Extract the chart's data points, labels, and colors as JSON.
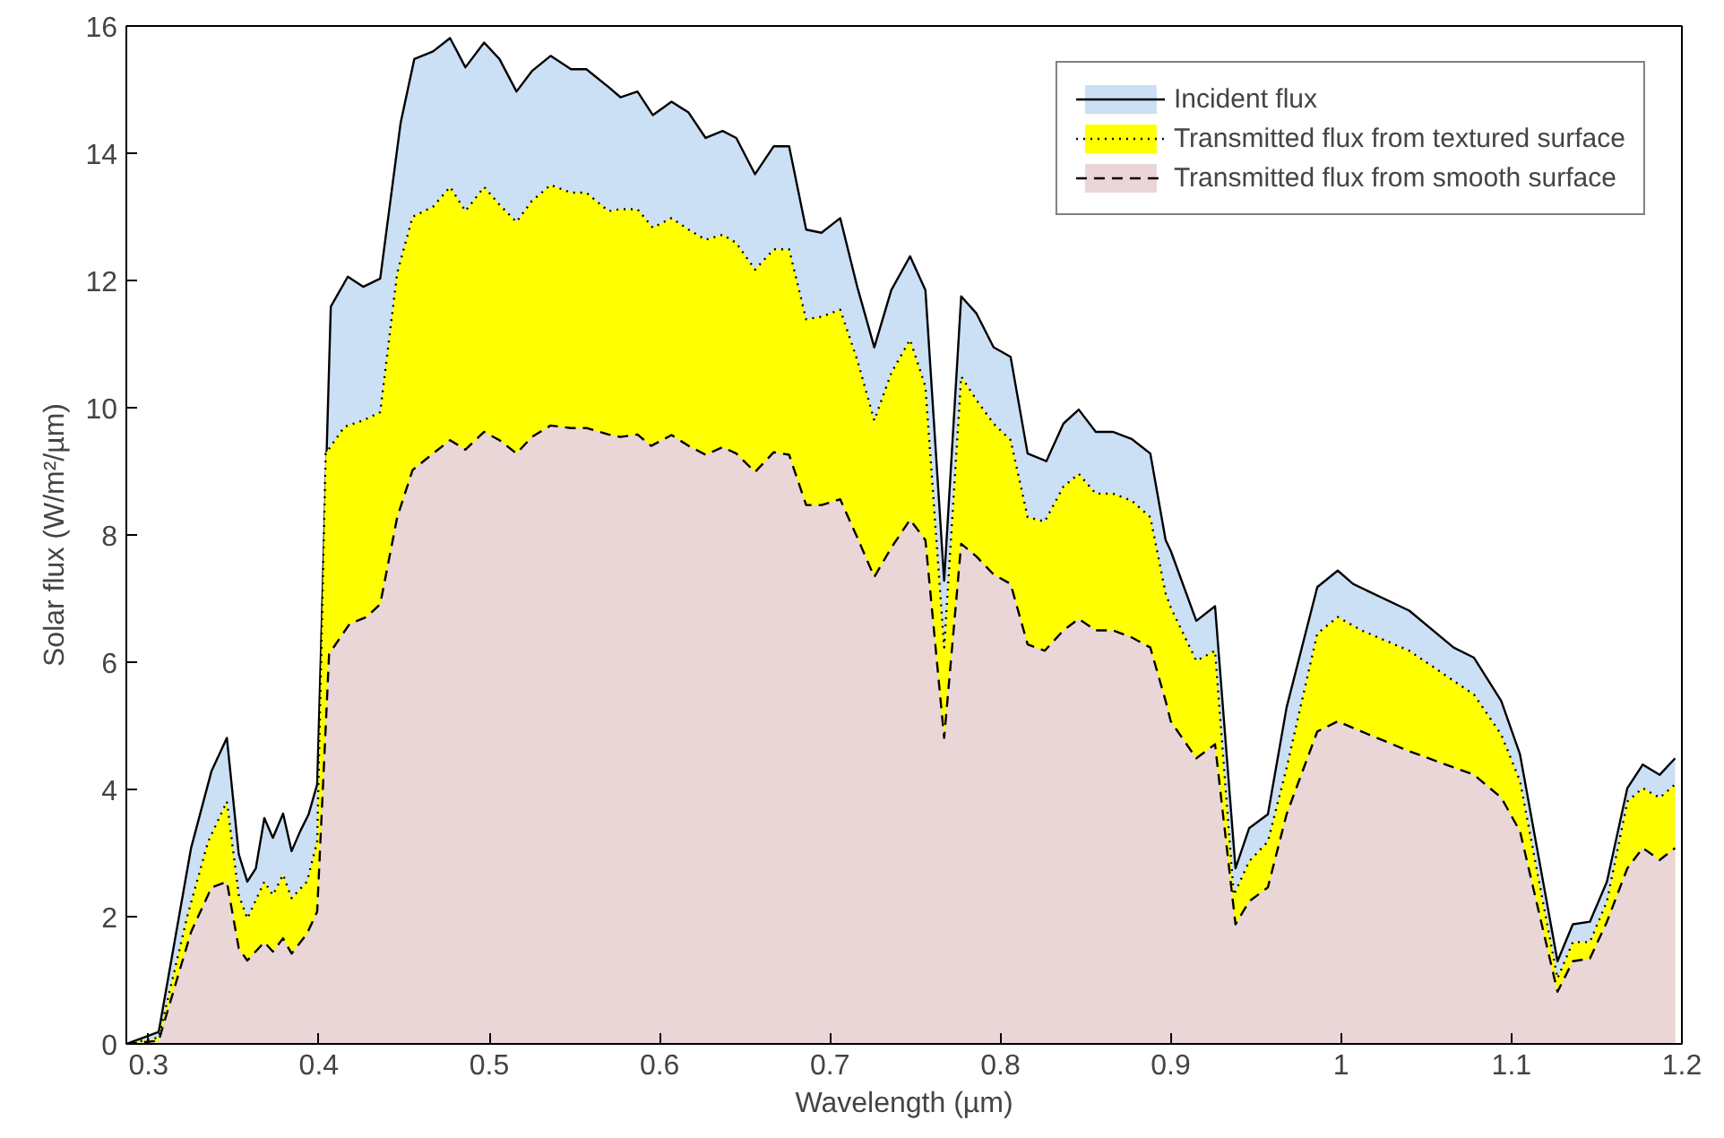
{
  "chart_data": {
    "type": "area",
    "xlabel": "Wavelength (µm)",
    "ylabel": "Solar flux (W/m²/µm)",
    "xlim": [
      0.287,
      1.2
    ],
    "xticks": [
      0.3,
      0.4,
      0.5,
      0.6,
      0.7,
      0.8,
      0.9,
      1,
      1.1,
      1.2
    ],
    "ylim": [
      0,
      16
    ],
    "yticks": [
      0,
      2,
      4,
      6,
      8,
      10,
      12,
      14,
      16
    ],
    "grid": false,
    "legend": "top right",
    "series": [
      {
        "name": "Incident flux",
        "color": "#cbdff5",
        "line_style": "solid",
        "x": [
          0.287,
          0.306,
          0.325,
          0.337,
          0.346,
          0.353,
          0.358,
          0.363,
          0.368,
          0.373,
          0.379,
          0.384,
          0.389,
          0.394,
          0.399,
          0.407,
          0.417,
          0.426,
          0.436,
          0.448,
          0.456,
          0.467,
          0.477,
          0.486,
          0.497,
          0.506,
          0.516,
          0.525,
          0.536,
          0.548,
          0.557,
          0.57,
          0.577,
          0.587,
          0.596,
          0.607,
          0.617,
          0.627,
          0.637,
          0.645,
          0.656,
          0.667,
          0.676,
          0.686,
          0.695,
          0.706,
          0.716,
          0.726,
          0.736,
          0.747,
          0.756,
          0.767,
          0.777,
          0.786,
          0.796,
          0.806,
          0.816,
          0.827,
          0.837,
          0.846,
          0.856,
          0.866,
          0.877,
          0.888,
          0.897,
          0.9,
          0.915,
          0.926,
          0.938,
          0.946,
          0.957,
          0.968,
          0.986,
          0.998,
          1.007,
          1.04,
          1.066,
          1.078,
          1.094,
          1.105,
          1.127,
          1.136,
          1.146,
          1.156,
          1.168,
          1.177,
          1.187,
          1.196
        ],
        "values": [
          0,
          0.19,
          3.08,
          4.29,
          4.81,
          2.98,
          2.55,
          2.76,
          3.55,
          3.24,
          3.62,
          3.03,
          3.34,
          3.61,
          4.08,
          11.59,
          12.06,
          11.9,
          12.03,
          14.48,
          15.48,
          15.6,
          15.81,
          15.35,
          15.74,
          15.48,
          14.97,
          15.29,
          15.53,
          15.32,
          15.32,
          15.04,
          14.88,
          14.97,
          14.6,
          14.81,
          14.64,
          14.24,
          14.35,
          14.24,
          13.67,
          14.11,
          14.11,
          12.8,
          12.75,
          12.98,
          11.9,
          10.95,
          11.85,
          12.38,
          11.85,
          7.28,
          11.75,
          11.48,
          10.95,
          10.8,
          9.28,
          9.16,
          9.75,
          9.97,
          9.62,
          9.62,
          9.51,
          9.28,
          7.92,
          7.75,
          6.65,
          6.88,
          2.76,
          3.39,
          3.61,
          5.29,
          7.18,
          7.44,
          7.23,
          6.81,
          6.23,
          6.07,
          5.39,
          4.55,
          1.3,
          1.88,
          1.92,
          2.55,
          4.02,
          4.39,
          4.23,
          4.49
        ]
      },
      {
        "name": "Transmitted flux from textured surface",
        "color": "#ffff00",
        "line_style": "dotted",
        "x": [
          0.287,
          0.306,
          0.323,
          0.335,
          0.346,
          0.353,
          0.358,
          0.368,
          0.373,
          0.379,
          0.384,
          0.393,
          0.399,
          0.404,
          0.415,
          0.426,
          0.436,
          0.446,
          0.455,
          0.467,
          0.477,
          0.486,
          0.497,
          0.506,
          0.516,
          0.525,
          0.536,
          0.548,
          0.557,
          0.57,
          0.577,
          0.587,
          0.596,
          0.607,
          0.617,
          0.627,
          0.637,
          0.645,
          0.656,
          0.667,
          0.676,
          0.686,
          0.695,
          0.706,
          0.716,
          0.726,
          0.736,
          0.747,
          0.756,
          0.767,
          0.777,
          0.786,
          0.796,
          0.806,
          0.816,
          0.826,
          0.837,
          0.846,
          0.856,
          0.866,
          0.877,
          0.888,
          0.897,
          0.9,
          0.915,
          0.926,
          0.937,
          0.946,
          0.957,
          0.968,
          0.986,
          0.998,
          1.012,
          1.04,
          1.078,
          1.094,
          1.105,
          1.127,
          1.136,
          1.146,
          1.156,
          1.168,
          1.177,
          1.187,
          1.196
        ],
        "values": [
          0,
          0.1,
          2.03,
          3.18,
          3.81,
          2.34,
          1.97,
          2.55,
          2.34,
          2.66,
          2.29,
          2.55,
          3.18,
          9.28,
          9.7,
          9.8,
          9.93,
          12.12,
          13.0,
          13.16,
          13.47,
          13.09,
          13.47,
          13.19,
          12.92,
          13.25,
          13.5,
          13.38,
          13.38,
          13.09,
          13.12,
          13.12,
          12.83,
          12.98,
          12.8,
          12.64,
          12.72,
          12.59,
          12.17,
          12.49,
          12.49,
          11.39,
          11.43,
          11.54,
          10.75,
          9.8,
          10.55,
          11.07,
          10.33,
          6.23,
          10.49,
          10.12,
          9.75,
          9.49,
          8.28,
          8.21,
          8.76,
          8.96,
          8.65,
          8.65,
          8.54,
          8.28,
          7.08,
          6.86,
          6.02,
          6.18,
          2.34,
          2.87,
          3.18,
          4.34,
          6.45,
          6.71,
          6.5,
          6.18,
          5.49,
          4.86,
          4.13,
          1.03,
          1.6,
          1.6,
          2.24,
          3.81,
          4.02,
          3.87,
          4.08
        ]
      },
      {
        "name": "Transmitted flux from smooth surface",
        "color": "#ead6d6",
        "line_style": "dashed",
        "x": [
          0.287,
          0.306,
          0.325,
          0.337,
          0.346,
          0.353,
          0.358,
          0.368,
          0.373,
          0.379,
          0.384,
          0.393,
          0.399,
          0.406,
          0.418,
          0.428,
          0.436,
          0.446,
          0.455,
          0.467,
          0.477,
          0.486,
          0.497,
          0.506,
          0.516,
          0.525,
          0.536,
          0.548,
          0.557,
          0.57,
          0.577,
          0.587,
          0.595,
          0.607,
          0.617,
          0.627,
          0.637,
          0.645,
          0.656,
          0.667,
          0.676,
          0.686,
          0.695,
          0.706,
          0.716,
          0.726,
          0.736,
          0.747,
          0.756,
          0.767,
          0.777,
          0.786,
          0.796,
          0.806,
          0.816,
          0.826,
          0.837,
          0.846,
          0.856,
          0.866,
          0.877,
          0.888,
          0.897,
          0.9,
          0.915,
          0.926,
          0.938,
          0.946,
          0.957,
          0.968,
          0.986,
          0.998,
          1.012,
          1.04,
          1.078,
          1.094,
          1.105,
          1.127,
          1.136,
          1.146,
          1.156,
          1.168,
          1.177,
          1.187,
          1.196
        ],
        "values": [
          0,
          0.05,
          1.76,
          2.46,
          2.55,
          1.5,
          1.31,
          1.6,
          1.45,
          1.66,
          1.42,
          1.73,
          2.08,
          6.13,
          6.6,
          6.71,
          6.91,
          8.28,
          9.02,
          9.28,
          9.49,
          9.34,
          9.62,
          9.49,
          9.28,
          9.54,
          9.72,
          9.68,
          9.68,
          9.58,
          9.54,
          9.58,
          9.4,
          9.57,
          9.4,
          9.26,
          9.38,
          9.28,
          8.99,
          9.3,
          9.26,
          8.47,
          8.47,
          8.56,
          7.96,
          7.34,
          7.8,
          8.24,
          7.92,
          4.81,
          7.86,
          7.66,
          7.38,
          7.23,
          6.28,
          6.18,
          6.5,
          6.68,
          6.5,
          6.5,
          6.39,
          6.23,
          5.39,
          5.07,
          4.49,
          4.71,
          1.88,
          2.24,
          2.46,
          3.61,
          4.91,
          5.07,
          4.91,
          4.6,
          4.23,
          3.87,
          3.34,
          0.82,
          1.3,
          1.34,
          1.92,
          2.76,
          3.08,
          2.89,
          3.08
        ]
      }
    ]
  }
}
